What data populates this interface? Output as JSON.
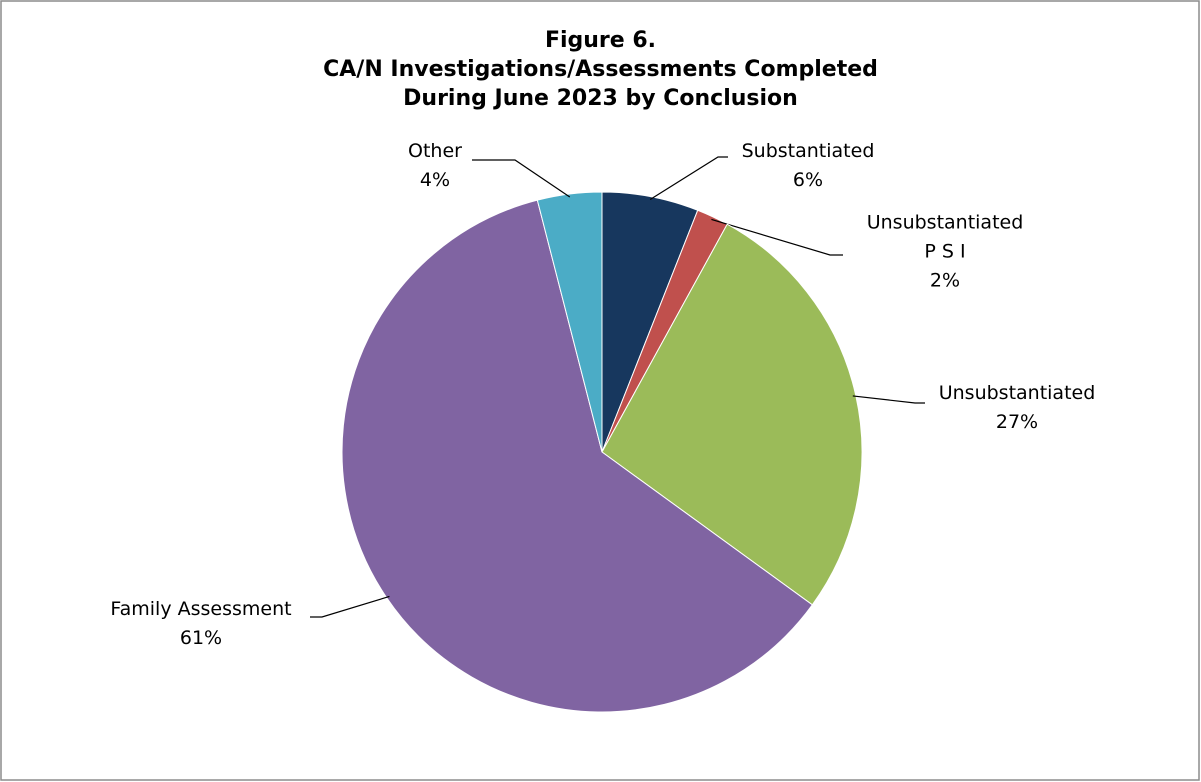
{
  "chart_data": {
    "type": "pie",
    "title": "Figure 6.\nCA/N Investigations/Assessments Completed\nDuring June 2023 by Conclusion",
    "categories": [
      "Substantiated",
      "Unsubstantiated\nP S I",
      "Unsubstantiated",
      "Family Assessment",
      "Other"
    ],
    "values": [
      6,
      2,
      27,
      61,
      4
    ],
    "value_labels": [
      "6%",
      "2%",
      "27%",
      "61%",
      "4%"
    ],
    "colors": [
      "#17375e",
      "#c0504d",
      "#9bbb59",
      "#8064a2",
      "#4bacc6"
    ]
  }
}
